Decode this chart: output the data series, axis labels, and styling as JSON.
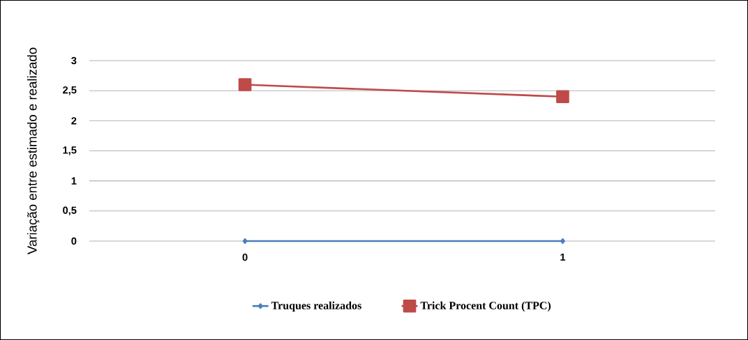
{
  "chart_data": {
    "type": "line",
    "ylabel": "Variação entre estimado e realizado",
    "categories": [
      "0",
      "1"
    ],
    "series": [
      {
        "name": "Truques realizados",
        "color": "#4a7ebb",
        "values": [
          0,
          0
        ],
        "marker": "diamond"
      },
      {
        "name": "Trick Procent Count (TPC)",
        "color": "#be4b48",
        "values": [
          2.6,
          2.4
        ],
        "marker": "square"
      }
    ],
    "ylim": [
      0,
      3
    ],
    "yticks": [
      0,
      {
        "value": 0.5,
        "label": "0,5"
      },
      1,
      {
        "value": 1.5,
        "label": "1,5"
      },
      2,
      {
        "value": 2.5,
        "label": "2,5"
      },
      3
    ],
    "grid": "y",
    "legend": "bottom",
    "line_style": "solid"
  }
}
